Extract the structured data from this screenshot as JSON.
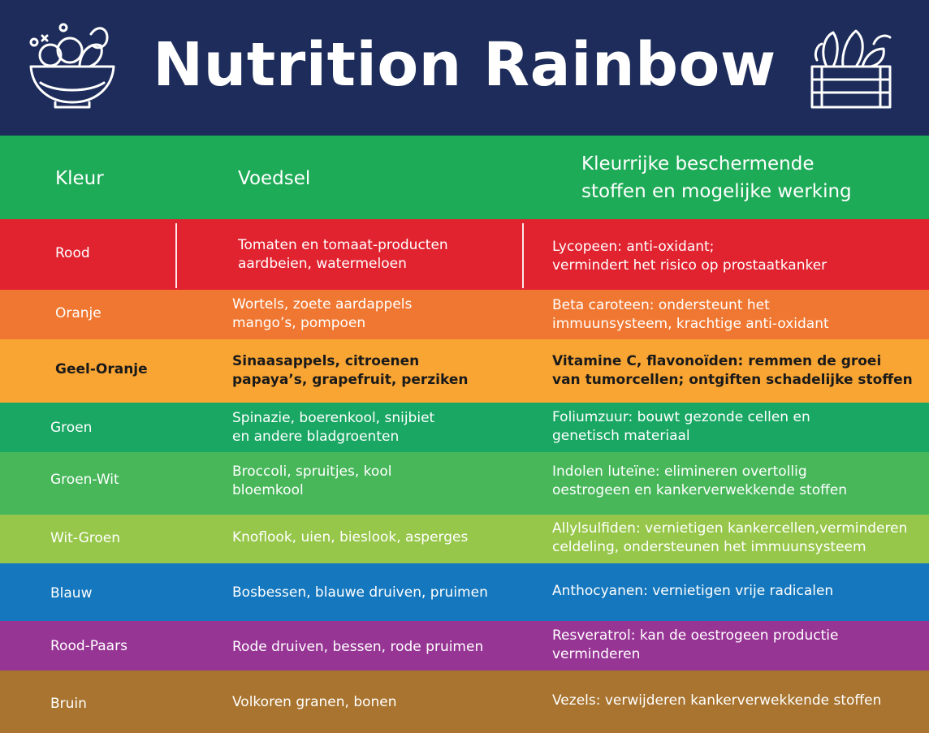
{
  "title": "Nutrition Rainbow",
  "icons": {
    "left": "salad-bowl-icon",
    "right": "vegetable-crate-icon"
  },
  "colors": {
    "header_bg": "#1d2c5a",
    "column_header_bg": "#1eab57"
  },
  "columns": {
    "kleur": "Kleur",
    "voedsel": "Voedsel",
    "stoffen_line1": "Kleurrijke beschermende",
    "stoffen_line2": "stoffen en mogelijke werking"
  },
  "rows": [
    {
      "kleur": "Rood",
      "color": "#e12330",
      "voedsel": [
        "Tomaten en tomaat-producten",
        "aardbeien, watermeloen"
      ],
      "stoffen": [
        "Lycopeen: anti-oxidant;",
        "vermindert het risico op prostaatkanker"
      ]
    },
    {
      "kleur": "Oranje",
      "color": "#f07731",
      "voedsel": [
        "Wortels, zoete aardappels",
        "mango’s, pompoen"
      ],
      "stoffen": [
        "Beta caroteen: ondersteunt het",
        "immuunsysteem, krachtige anti-oxidant"
      ]
    },
    {
      "kleur": "Geel-Oranje",
      "color": "#f9a533",
      "voedsel": [
        "Sinaasappels, citroenen",
        "papaya’s, grapefruit, perziken"
      ],
      "stoffen": [
        "Vitamine C, flavonoïden: remmen de groei",
        "van tumorcellen; ontgiften schadelijke stoffen"
      ]
    },
    {
      "kleur": "Groen",
      "color": "#1aa764",
      "voedsel": [
        "Spinazie, boerenkool, snijbiet",
        "en andere bladgroenten"
      ],
      "stoffen": [
        "Foliumzuur: bouwt gezonde cellen en",
        "genetisch materiaal"
      ]
    },
    {
      "kleur": "Groen-Wit",
      "color": "#47b75a",
      "voedsel": [
        "Broccoli, spruitjes, kool",
        "bloemkool"
      ],
      "stoffen": [
        "Indolen luteïne: elimineren overtollig",
        "oestrogeen en kankerverwekkende stoffen"
      ]
    },
    {
      "kleur": "Wit-Groen",
      "color": "#97c74a",
      "voedsel": [
        "Knoflook, uien, bieslook, asperges",
        ""
      ],
      "stoffen": [
        "Allylsulfiden: vernietigen kankercellen,verminderen",
        "celdeling, ondersteunen het immuunsysteem"
      ]
    },
    {
      "kleur": "Blauw",
      "color": "#1577bd",
      "voedsel": [
        "Bosbessen, blauwe druiven, pruimen",
        ""
      ],
      "stoffen": [
        "Anthocyanen: vernietigen vrije radicalen",
        ""
      ]
    },
    {
      "kleur": "Rood-Paars",
      "color": "#973595",
      "voedsel": [
        "Rode druiven, bessen, rode pruimen",
        ""
      ],
      "stoffen": [
        "Resveratrol: kan de oestrogeen productie",
        "verminderen"
      ]
    },
    {
      "kleur": "Bruin",
      "color": "#a8742f",
      "voedsel": [
        "Volkoren granen, bonen",
        ""
      ],
      "stoffen": [
        "Vezels: verwijderen kankerverwekkende stoffen",
        ""
      ]
    }
  ]
}
